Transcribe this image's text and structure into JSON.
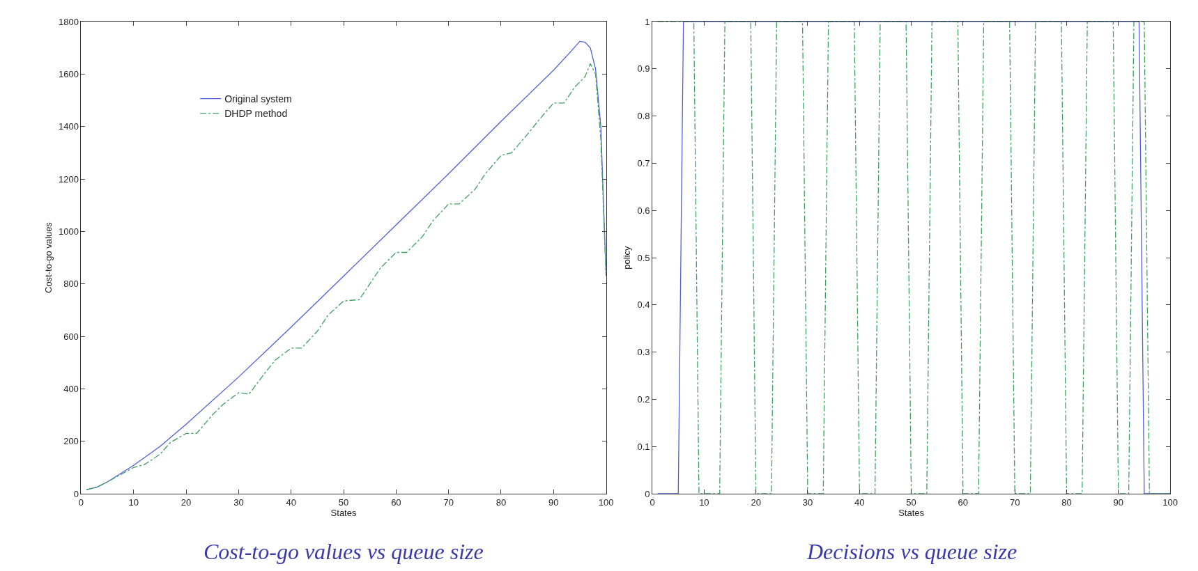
{
  "chart_data": [
    {
      "type": "line",
      "title": "Cost-to-go values vs queue size",
      "xlabel": "States",
      "ylabel": "Cost-to-go values",
      "xlim": [
        0,
        100
      ],
      "xticks": [
        0,
        10,
        20,
        30,
        40,
        50,
        60,
        70,
        80,
        90,
        100
      ],
      "ylim": [
        0,
        1800
      ],
      "yticks": [
        0,
        200,
        400,
        600,
        800,
        1000,
        1200,
        1400,
        1600,
        1800
      ],
      "legend": "top left",
      "marker": "none",
      "series": [
        {
          "name": "Original system",
          "color": "#5060d8",
          "line_style": "solid",
          "x": [
            1,
            3,
            5,
            10,
            15,
            20,
            30,
            40,
            50,
            60,
            70,
            80,
            90,
            93,
            95,
            96,
            97,
            98,
            99,
            100
          ],
          "values": [
            15,
            25,
            45,
            108,
            180,
            265,
            445,
            635,
            830,
            1025,
            1220,
            1420,
            1615,
            1680,
            1725,
            1722,
            1700,
            1620,
            1400,
            830
          ]
        },
        {
          "name": "DHDP method",
          "color": "#40a060",
          "line_style": "dashed",
          "x": [
            1,
            3,
            5,
            10,
            12,
            15,
            17,
            20,
            22,
            25,
            27,
            30,
            32,
            35,
            37,
            40,
            42,
            45,
            47,
            50,
            53,
            55,
            57,
            60,
            62,
            65,
            67,
            70,
            72,
            75,
            77,
            80,
            82,
            85,
            87,
            90,
            92,
            94,
            96,
            97,
            98,
            99,
            100
          ],
          "values": [
            15,
            25,
            45,
            100,
            110,
            150,
            195,
            230,
            230,
            300,
            340,
            385,
            380,
            460,
            510,
            555,
            555,
            620,
            680,
            735,
            740,
            800,
            860,
            920,
            920,
            980,
            1040,
            1105,
            1105,
            1160,
            1220,
            1290,
            1300,
            1370,
            1420,
            1490,
            1490,
            1550,
            1590,
            1640,
            1600,
            1350,
            830
          ]
        }
      ]
    },
    {
      "type": "line",
      "title": "Decisions vs queue size",
      "xlabel": "States",
      "ylabel": "policy",
      "xlim": [
        0,
        100
      ],
      "xticks": [
        0,
        10,
        20,
        30,
        40,
        50,
        60,
        70,
        80,
        90,
        100
      ],
      "ylim": [
        0,
        1
      ],
      "yticks": [
        0,
        0.1,
        0.2,
        0.3,
        0.4,
        0.5,
        0.6,
        0.7,
        0.8,
        0.9,
        1
      ],
      "legend": false,
      "marker": "none",
      "series": [
        {
          "color": "#5060d8",
          "line_style": "solid",
          "x": [
            1,
            5,
            6,
            94,
            95,
            100
          ],
          "values": [
            0,
            0,
            1,
            1,
            0,
            0
          ]
        },
        {
          "color": "#40a060",
          "line_style": "dashed",
          "x": [
            1,
            8,
            9,
            13,
            14,
            19,
            20,
            23,
            24,
            29,
            30,
            33,
            34,
            39,
            40,
            43,
            44,
            49,
            50,
            53,
            54,
            59,
            60,
            63,
            64,
            69,
            70,
            73,
            74,
            79,
            80,
            83,
            84,
            89,
            90,
            92,
            93,
            95,
            96,
            100
          ],
          "values": [
            1,
            1,
            0,
            0,
            1,
            1,
            0,
            0,
            1,
            1,
            0,
            0,
            1,
            1,
            0,
            0,
            1,
            1,
            0,
            0,
            1,
            1,
            0,
            0,
            1,
            1,
            0,
            0,
            1,
            1,
            0,
            0,
            1,
            1,
            0,
            0,
            1,
            1,
            0,
            0
          ]
        }
      ]
    }
  ]
}
